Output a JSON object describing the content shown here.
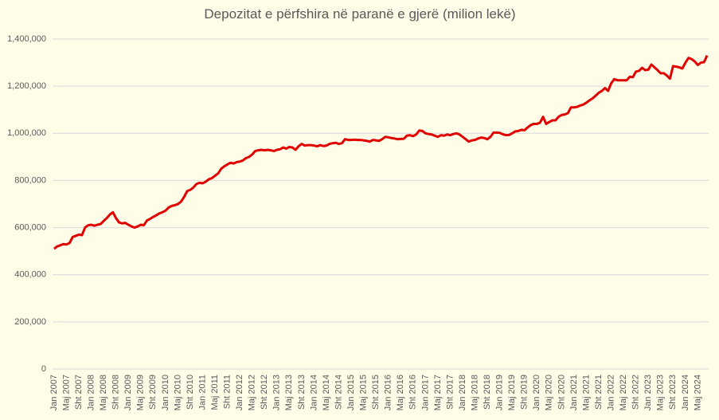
{
  "chart_data": {
    "type": "line",
    "title": "Depozitat e përfshira në paranë e gjerë (milion lekë)",
    "color": "#e00000",
    "grid": true,
    "ylim": [
      0,
      1400000
    ],
    "yticks": [
      0,
      {
        "value": 200000,
        "label": "200,000"
      },
      {
        "value": 400000,
        "label": "400,000"
      },
      {
        "value": 600000,
        "label": "600,000"
      },
      {
        "value": 800000,
        "label": "800,000"
      },
      {
        "value": 1000000,
        "label": "1,000,000"
      },
      {
        "value": 1200000,
        "label": "1,200,000"
      },
      {
        "value": 1400000,
        "label": "1,400,000"
      }
    ],
    "categories": [
      "Jan 2007",
      null,
      null,
      null,
      "Maj 2007",
      null,
      null,
      null,
      "Sht 2007",
      null,
      null,
      null,
      "Jan 2008",
      null,
      null,
      null,
      "Maj 2008",
      null,
      null,
      null,
      "Sht 2008",
      null,
      null,
      null,
      "Jan 2009",
      null,
      null,
      null,
      "Maj 2009",
      null,
      null,
      null,
      "Sht 2009",
      null,
      null,
      null,
      "Jan 2010",
      null,
      null,
      null,
      "Maj 2010",
      null,
      null,
      null,
      "Sht 2010",
      null,
      null,
      null,
      "Jan 2011",
      null,
      null,
      null,
      "Maj 2011",
      null,
      null,
      null,
      "Sht 2011",
      null,
      null,
      null,
      "Jan 2012",
      null,
      null,
      null,
      "Maj 2012",
      null,
      null,
      null,
      "Sht 2012",
      null,
      null,
      null,
      "Jan 2013",
      null,
      null,
      null,
      "Maj 2013",
      null,
      null,
      null,
      "Sht 2013",
      null,
      null,
      null,
      "Jan 2014",
      null,
      null,
      null,
      "Maj 2014",
      null,
      null,
      null,
      "Sht 2014",
      null,
      null,
      null,
      "Jan 2015",
      null,
      null,
      null,
      "Maj 2015",
      null,
      null,
      null,
      "Sht 2015",
      null,
      null,
      null,
      "Jan 2016",
      null,
      null,
      null,
      "Maj 2016",
      null,
      null,
      null,
      "Sht 2016",
      null,
      null,
      null,
      "Jan 2017",
      null,
      null,
      null,
      "Maj 2017",
      null,
      null,
      null,
      "Sht 2017",
      null,
      null,
      null,
      "Jan 2018",
      null,
      null,
      null,
      "Maj 2018",
      null,
      null,
      null,
      "Sht 2018",
      null,
      null,
      null,
      "Jan 2019",
      null,
      null,
      null,
      "Maj 2019",
      null,
      null,
      null,
      "Sht 2019",
      null,
      null,
      null,
      "Jan 2020",
      null,
      null,
      null,
      "Maj 2020",
      null,
      null,
      null,
      "Sht 2020",
      null,
      null,
      null,
      "Jan 2021",
      null,
      null,
      null,
      "Maj 2021",
      null,
      null,
      null,
      "Sht 2021",
      null,
      null,
      null,
      "Jan 2022",
      null,
      null,
      null,
      "Maj 2022",
      null,
      null,
      null,
      "Sht 2022",
      null,
      null,
      null,
      "Jan 2023",
      null,
      null,
      null,
      "Maj 2023",
      null,
      null,
      null,
      "Sht 2023",
      null,
      null,
      null,
      "Jan 2024",
      null,
      null,
      null,
      "Maj 2024",
      null,
      null,
      null
    ],
    "values": [
      510000,
      520000,
      525000,
      530000,
      528000,
      535000,
      560000,
      565000,
      570000,
      568000,
      600000,
      610000,
      612000,
      608000,
      612000,
      615000,
      628000,
      640000,
      655000,
      665000,
      640000,
      622000,
      618000,
      620000,
      612000,
      605000,
      600000,
      605000,
      612000,
      610000,
      630000,
      637000,
      645000,
      652000,
      660000,
      665000,
      672000,
      685000,
      692000,
      695000,
      700000,
      710000,
      730000,
      755000,
      760000,
      770000,
      785000,
      790000,
      788000,
      795000,
      805000,
      810000,
      820000,
      830000,
      850000,
      860000,
      868000,
      875000,
      872000,
      878000,
      880000,
      885000,
      895000,
      900000,
      910000,
      925000,
      928000,
      930000,
      928000,
      930000,
      928000,
      925000,
      930000,
      932000,
      940000,
      935000,
      942000,
      940000,
      930000,
      945000,
      955000,
      948000,
      950000,
      950000,
      948000,
      945000,
      950000,
      946000,
      948000,
      955000,
      958000,
      960000,
      955000,
      958000,
      975000,
      972000,
      972000,
      973000,
      972000,
      972000,
      970000,
      968000,
      965000,
      972000,
      970000,
      968000,
      975000,
      985000,
      983000,
      980000,
      978000,
      975000,
      976000,
      977000,
      990000,
      992000,
      988000,
      995000,
      1012000,
      1010000,
      1000000,
      997000,
      995000,
      990000,
      985000,
      992000,
      990000,
      995000,
      992000,
      997000,
      1000000,
      995000,
      985000,
      975000,
      965000,
      970000,
      972000,
      978000,
      982000,
      980000,
      975000,
      985000,
      1003000,
      1003000,
      1002000,
      996000,
      992000,
      993000,
      1000000,
      1008000,
      1010000,
      1015000,
      1013000,
      1025000,
      1035000,
      1040000,
      1040000,
      1045000,
      1070000,
      1040000,
      1048000,
      1055000,
      1055000,
      1070000,
      1078000,
      1080000,
      1085000,
      1110000,
      1110000,
      1112000,
      1118000,
      1122000,
      1130000,
      1140000,
      1148000,
      1160000,
      1172000,
      1180000,
      1192000,
      1180000,
      1212000,
      1230000,
      1225000,
      1225000,
      1225000,
      1225000,
      1240000,
      1238000,
      1262000,
      1265000,
      1278000,
      1268000,
      1270000,
      1292000,
      1280000,
      1268000,
      1255000,
      1255000,
      1245000,
      1232000,
      1285000,
      1283000,
      1280000,
      1275000,
      1300000,
      1320000,
      1315000,
      1305000,
      1290000,
      1300000,
      1302000,
      1330000
    ]
  }
}
